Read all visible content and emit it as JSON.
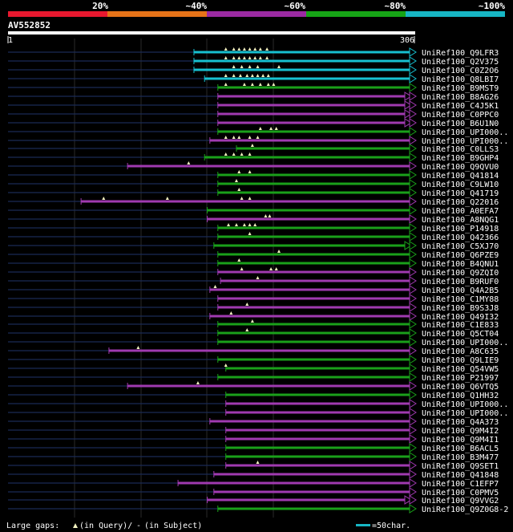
{
  "legend": {
    "pct_labels": [
      "20%",
      "~40%",
      "~60%",
      "~80%",
      "~100%"
    ],
    "pct_colors": [
      "#e8182f",
      "#e67318",
      "#9b2aa2",
      "#16a416",
      "#17b6c4"
    ]
  },
  "query": {
    "name": "AV552852",
    "start": "1",
    "end": "306"
  },
  "footer": {
    "gaps_prefix": "Large gaps:",
    "gaps_query": "(in Query)/",
    "gaps_dash": "-",
    "gaps_subject": "(in Subject)",
    "scale": "=50char."
  },
  "chart_data": {
    "type": "alignment",
    "query_length": 306,
    "hits": [
      {
        "name": "UniRef100_Q9LFR3",
        "color": "cyan",
        "start": 140,
        "tris": [
          164,
          170,
          174,
          178,
          182,
          186,
          190,
          195
        ]
      },
      {
        "name": "UniRef100_Q2V375",
        "color": "cyan",
        "start": 140,
        "tris": [
          164,
          170,
          174,
          178,
          182,
          186,
          190,
          195
        ]
      },
      {
        "name": "UniRef100_C0Z2O6",
        "color": "cyan",
        "start": 140,
        "tris": [
          170,
          176,
          182,
          188,
          204
        ]
      },
      {
        "name": "UniRef100_Q8LBI7",
        "color": "cyan",
        "start": 148,
        "tris": [
          164,
          170,
          175,
          180,
          184,
          188,
          192,
          196
        ]
      },
      {
        "name": "UniRef100_B9MST9",
        "color": "green",
        "start": 158,
        "tris": [
          164,
          178,
          184,
          190,
          196,
          200
        ]
      },
      {
        "name": "UniRef100_B8AG26",
        "color": "purple",
        "start": 158,
        "tris": [],
        "tail": "double"
      },
      {
        "name": "UniRef100_C4J5K1",
        "color": "purple",
        "start": 158,
        "tris": [],
        "tail": "double"
      },
      {
        "name": "UniRef100_C0PPC0",
        "color": "purple",
        "start": 158,
        "tris": [],
        "tail": "double"
      },
      {
        "name": "UniRef100_B6U1N0",
        "color": "purple",
        "start": 158,
        "tris": [],
        "tail": "double"
      },
      {
        "name": "UniRef100_UPI000..",
        "color": "green",
        "start": 158,
        "tris": [
          190,
          198,
          202
        ]
      },
      {
        "name": "UniRef100_UPI000..",
        "color": "purple",
        "start": 152,
        "tris": [
          164,
          170,
          174,
          182,
          188
        ]
      },
      {
        "name": "UniRef100_C0LLS3",
        "color": "green",
        "start": 172,
        "tris": [
          184
        ]
      },
      {
        "name": "UniRef100_B9GHP4",
        "color": "green",
        "start": 148,
        "tris": [
          164,
          170,
          176,
          182
        ]
      },
      {
        "name": "UniRef100_Q9QVU0",
        "color": "purple",
        "start": 90,
        "tris": [
          136
        ]
      },
      {
        "name": "UniRef100_Q41814",
        "color": "green",
        "start": 158,
        "tris": [
          174,
          182
        ]
      },
      {
        "name": "UniRef100_C9LW10",
        "color": "green",
        "start": 158,
        "tris": [
          172
        ]
      },
      {
        "name": "UniRef100_Q41719",
        "color": "green",
        "start": 158,
        "tris": [
          174
        ]
      },
      {
        "name": "UniRef100_Q22016",
        "color": "purple",
        "start": 55,
        "tris": [
          72,
          120,
          176,
          182
        ]
      },
      {
        "name": "UniRef100_A0EFA7",
        "color": "green",
        "start": 150,
        "tris": []
      },
      {
        "name": "UniRef100_A8NQG1",
        "color": "purple",
        "start": 150,
        "tris": [
          194,
          197
        ]
      },
      {
        "name": "UniRef100_P14918",
        "color": "green",
        "start": 158,
        "tris": [
          166,
          172,
          178,
          182,
          186
        ]
      },
      {
        "name": "UniRef100_Q42366",
        "color": "green",
        "start": 158,
        "tris": [
          182
        ]
      },
      {
        "name": "UniRef100_C5XJ70",
        "color": "green",
        "start": 155,
        "tris": [],
        "tail": "double"
      },
      {
        "name": "UniRef100_Q6PZE9",
        "color": "green",
        "start": 158,
        "tris": [
          204
        ]
      },
      {
        "name": "UniRef100_B4QNU1",
        "color": "green",
        "start": 158,
        "tris": [
          174
        ]
      },
      {
        "name": "UniRef100_Q9ZQI0",
        "color": "purple",
        "start": 158,
        "tris": [
          176,
          198,
          202
        ]
      },
      {
        "name": "UniRef100_B9RUF0",
        "color": "purple",
        "start": 160,
        "tris": [
          188
        ]
      },
      {
        "name": "UniRef100_Q4A2B5",
        "color": "purple",
        "start": 152,
        "tris": [
          156
        ]
      },
      {
        "name": "UniRef100_C1MY88",
        "color": "purple",
        "start": 158,
        "tris": []
      },
      {
        "name": "UniRef100_B9S3J8",
        "color": "purple",
        "start": 158,
        "tris": [
          180
        ]
      },
      {
        "name": "UniRef100_Q49I32",
        "color": "purple",
        "start": 152,
        "tris": [
          168
        ]
      },
      {
        "name": "UniRef100_C1E833",
        "color": "green",
        "start": 158,
        "tris": [
          184
        ]
      },
      {
        "name": "UniRef100_Q5CT04",
        "color": "green",
        "start": 158,
        "tris": [
          180
        ]
      },
      {
        "name": "UniRef100_UPI000..",
        "color": "green",
        "start": 158,
        "tris": []
      },
      {
        "name": "UniRef100_A8C635",
        "color": "purple",
        "start": 76,
        "tris": [
          98
        ]
      },
      {
        "name": "UniRef100_Q9LIE9",
        "color": "green",
        "start": 158,
        "tris": []
      },
      {
        "name": "UniRef100_Q54VW5",
        "color": "green",
        "start": 164,
        "tris": [
          164
        ]
      },
      {
        "name": "UniRef100_P21997",
        "color": "green",
        "start": 158,
        "tris": []
      },
      {
        "name": "UniRef100_Q6VTQ5",
        "color": "purple",
        "start": 90,
        "tris": [
          143
        ]
      },
      {
        "name": "UniRef100_Q1HH32",
        "color": "green",
        "start": 164,
        "tris": []
      },
      {
        "name": "UniRef100_UPI000..",
        "color": "purple",
        "start": 164,
        "tris": []
      },
      {
        "name": "UniRef100_UPI000..",
        "color": "purple",
        "start": 164,
        "tris": []
      },
      {
        "name": "UniRef100_Q4A373",
        "color": "purple",
        "start": 152,
        "tris": []
      },
      {
        "name": "UniRef100_Q9M4I2",
        "color": "purple",
        "start": 164,
        "tris": []
      },
      {
        "name": "UniRef100_Q9M4I1",
        "color": "purple",
        "start": 164,
        "tris": []
      },
      {
        "name": "UniRef100_B6ACL5",
        "color": "green",
        "start": 164,
        "tris": []
      },
      {
        "name": "UniRef100_B3M477",
        "color": "green",
        "start": 164,
        "tris": []
      },
      {
        "name": "UniRef100_Q9SET1",
        "color": "purple",
        "start": 164,
        "tris": [
          188
        ]
      },
      {
        "name": "UniRef100_Q41848",
        "color": "purple",
        "start": 155,
        "tris": []
      },
      {
        "name": "UniRef100_C1EFP7",
        "color": "purple",
        "start": 128,
        "tris": []
      },
      {
        "name": "UniRef100_C0PMV5",
        "color": "purple",
        "start": 155,
        "tris": []
      },
      {
        "name": "UniRef100_Q9VVG2",
        "color": "purple",
        "start": 150,
        "tris": [],
        "tail": "double"
      },
      {
        "name": "UniRef100_Q9Z0G8-2",
        "color": "green",
        "start": 158,
        "tris": []
      }
    ]
  }
}
